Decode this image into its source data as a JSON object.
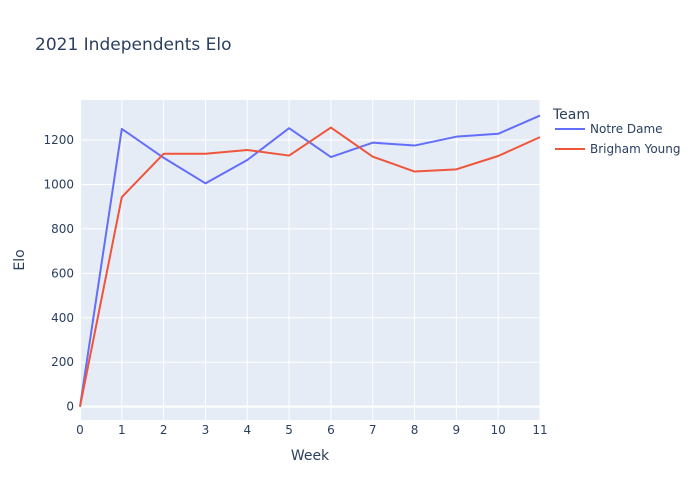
{
  "chart_data": {
    "type": "line",
    "title": "2021 Independents Elo",
    "xlabel": "Week",
    "ylabel": "Elo",
    "xlim": [
      0,
      11
    ],
    "ylim": [
      -60,
      1380
    ],
    "xticks": [
      0,
      1,
      2,
      3,
      4,
      5,
      6,
      7,
      8,
      9,
      10,
      11
    ],
    "yticks": [
      0,
      200,
      400,
      600,
      800,
      1000,
      1200
    ],
    "grid": true,
    "legend": {
      "title": "Team",
      "placement": "right"
    },
    "x": [
      0,
      1,
      2,
      3,
      4,
      5,
      6,
      7,
      8,
      9,
      10,
      11
    ],
    "series": [
      {
        "name": "Notre Dame",
        "color": "#636efa",
        "values": [
          0,
          1250,
          1120,
          1005,
          1110,
          1253,
          1123,
          1188,
          1175,
          1215,
          1228,
          1310
        ]
      },
      {
        "name": "Brigham Young",
        "color": "#ef553b",
        "values": [
          0,
          943,
          1138,
          1138,
          1155,
          1130,
          1256,
          1125,
          1058,
          1068,
          1128,
          1213
        ]
      }
    ]
  }
}
